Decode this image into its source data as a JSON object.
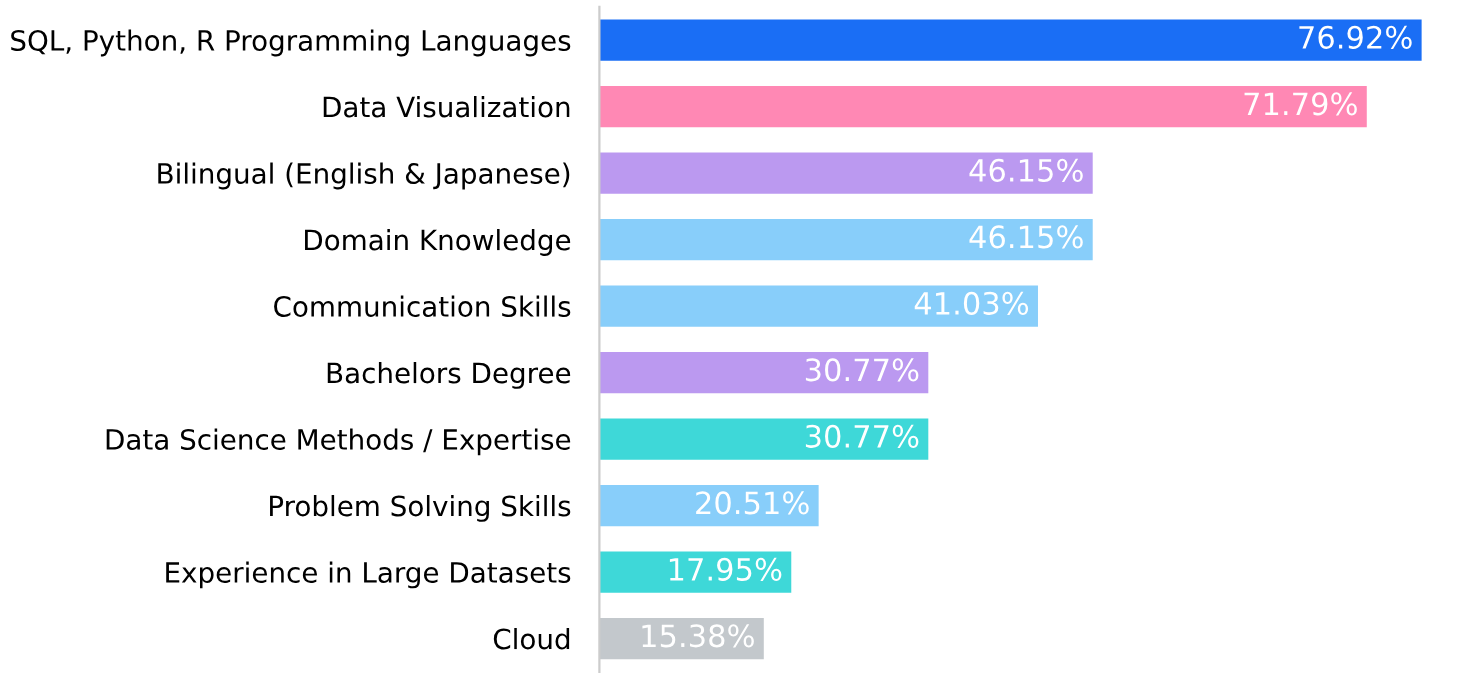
{
  "chart_data": {
    "type": "bar",
    "orientation": "horizontal",
    "categories": [
      "SQL, Python, R Programming Languages",
      "Data Visualization",
      "Bilingual (English & Japanese)",
      "Domain Knowledge",
      "Communication Skills",
      "Bachelors Degree",
      "Data Science Methods / Expertise",
      "Problem Solving Skills",
      "Experience in Large Datasets",
      "Cloud"
    ],
    "values": [
      76.92,
      71.79,
      46.15,
      46.15,
      41.03,
      30.77,
      30.77,
      20.51,
      17.95,
      15.38
    ],
    "colors": [
      "#1a6ef5",
      "#ff88b4",
      "#bb99f0",
      "#88cefa",
      "#88cefa",
      "#bb99f0",
      "#3ed8d8",
      "#88cefa",
      "#3ed8d8",
      "#c3c8cc"
    ],
    "value_labels": [
      "76.92%",
      "71.79%",
      "46.15%",
      "46.15%",
      "41.03%",
      "30.77%",
      "30.77%",
      "20.51%",
      "17.95%",
      "15.38%"
    ],
    "grid": false,
    "legend": false
  }
}
